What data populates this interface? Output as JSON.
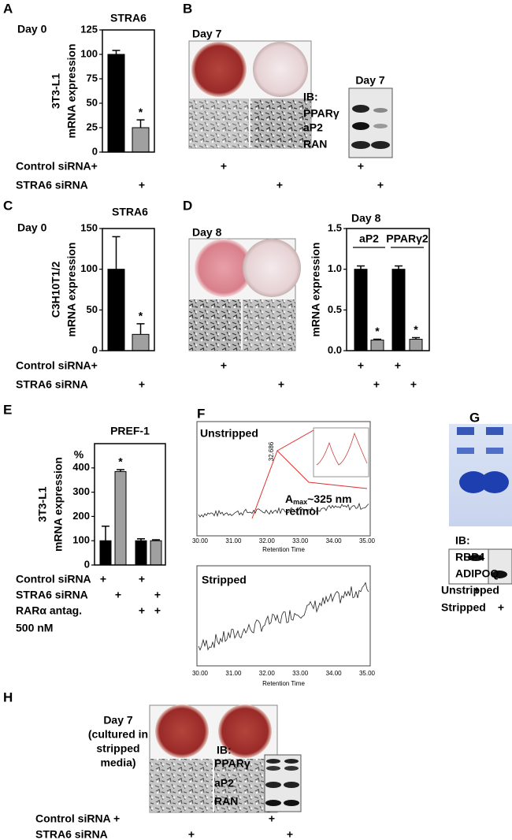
{
  "chart_data": [
    {
      "type": "bar",
      "panel": "A",
      "day": "Day 0",
      "title": "STRA6",
      "ylabel": [
        "3T3-L1",
        "mRNA expression"
      ],
      "ylim": [
        0,
        125
      ],
      "yticks": [
        0,
        25,
        50,
        75,
        100,
        125
      ],
      "series": [
        {
          "color": "#000000",
          "values": [
            100
          ],
          "errors": [
            4
          ]
        },
        {
          "color": "#a0a0a0",
          "values": [
            25
          ],
          "errors": [
            8
          ],
          "annotations": [
            "*"
          ]
        }
      ]
    },
    {
      "type": "bar",
      "panel": "C",
      "day": "Day 0",
      "title": "STRA6",
      "ylabel": [
        "C3H10T1/2",
        "mRNA expression"
      ],
      "ylim": [
        0,
        150
      ],
      "yticks": [
        0,
        50,
        100,
        150
      ],
      "series": [
        {
          "color": "#000000",
          "values": [
            100
          ],
          "errors": [
            40
          ]
        },
        {
          "color": "#a0a0a0",
          "values": [
            20
          ],
          "errors": [
            13
          ],
          "annotations": [
            "*"
          ]
        }
      ]
    },
    {
      "type": "bar",
      "panel": "D",
      "title": "Day 8",
      "categories": [
        "aP2",
        "PPARγ2"
      ],
      "ylabel": [
        "mRNA expression"
      ],
      "ylim": [
        0,
        1.5
      ],
      "yticks": [
        {
          "value": 0,
          "label": "0.0"
        },
        0.5,
        {
          "value": 1,
          "label": "1.0"
        },
        1.5
      ],
      "series": [
        {
          "color": "#000000",
          "values": [
            1.0,
            1.0
          ],
          "errors": [
            0.04,
            0.04
          ]
        },
        {
          "color": "#a0a0a0",
          "values": [
            0.13,
            0.14
          ],
          "errors": [
            0.01,
            0.02
          ],
          "annotations": [
            "*",
            "*"
          ]
        }
      ]
    },
    {
      "type": "bar",
      "panel": "E",
      "title": "PREF-1",
      "unit": "%",
      "ylabel": [
        "3T3-L1",
        "mRNA expression"
      ],
      "ylim": [
        0,
        500
      ],
      "yticks": [
        0,
        100,
        200,
        300,
        400
      ],
      "series": [
        {
          "color": "#000000",
          "values": [
            100,
            100
          ],
          "errors": [
            60,
            8
          ]
        },
        {
          "color": "#a0a0a0",
          "values": [
            385,
            100
          ],
          "errors": [
            8,
            4
          ],
          "annotations": [
            "*",
            null
          ]
        }
      ],
      "conditions": [
        {
          "label": "Control siRNA",
          "marks": [
            "+",
            "+"
          ]
        },
        {
          "label": "STRA6 siRNA",
          "marks": [
            "+",
            "+"
          ]
        },
        {
          "label": "RARα antag.",
          "marks": [
            "+",
            "+"
          ]
        }
      ],
      "concentration": "500 nM"
    }
  ],
  "figure": {
    "row1_conditions": [
      {
        "label": "Control siRNA+",
        "marks": [
          "+",
          "+"
        ]
      },
      {
        "label": "STRA6 siRNA",
        "marks": [
          "+",
          "+",
          "+"
        ]
      }
    ],
    "row2_conditions": [
      {
        "label": "Control siRNA+",
        "marks": [
          "+",
          "+",
          "+"
        ]
      },
      {
        "label": "STRA6 siRNA",
        "marks": [
          "+",
          "+",
          "+",
          "+"
        ]
      }
    ],
    "B": {
      "letter": "B",
      "day": "Day 7",
      "ib": "IB:",
      "blot_day": "Day 7",
      "proteins": [
        "PPARγ",
        "aP2",
        "RAN"
      ]
    },
    "D": {
      "day": "Day 8"
    },
    "F": {
      "letter": "F",
      "top_label": "Unstripped",
      "peak_time": "32.686",
      "amax": "A",
      "amax_sub": "max",
      "amax_rest": "~325 nm",
      "compound": "retinol",
      "bottom_label": "Stripped",
      "xticks": [
        "30.00",
        "31.00",
        "32.00",
        "33.00",
        "34.00",
        "35.00"
      ],
      "xlabel": "Retention Time"
    },
    "G": {
      "letter": "G",
      "ib": "IB:",
      "proteins": [
        "RBP4",
        "ADIPOQ"
      ],
      "conditions": [
        {
          "label": "Unstripped",
          "marks": [
            "+"
          ]
        },
        {
          "label": "Stripped",
          "marks": [
            "+"
          ]
        }
      ]
    },
    "H": {
      "letter": "H",
      "caption": [
        "Day 7",
        "(cultured in",
        "stripped",
        "media)"
      ],
      "ib": "IB:",
      "proteins": [
        "PPARγ",
        "aP2",
        "RAN"
      ],
      "conditions": [
        {
          "label": "Control siRNA +",
          "marks": [
            "+"
          ]
        },
        {
          "label": "STRA6 siRNA",
          "marks": [
            "+",
            "+"
          ]
        }
      ]
    }
  }
}
